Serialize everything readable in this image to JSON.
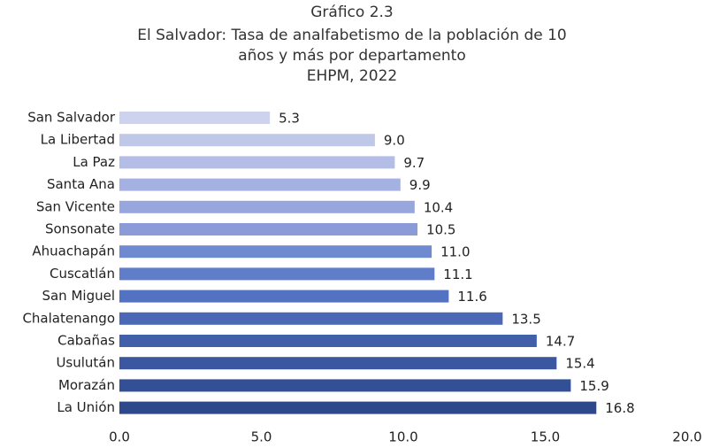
{
  "chart_data": {
    "type": "barh",
    "title": "Gráfico 2.3",
    "subtitle": [
      "El Salvador: Tasa de analfabetismo de la población de 10",
      "años y más por departamento",
      "EHPM, 2022"
    ],
    "categories": [
      "San Salvador",
      "La Libertad",
      "La Paz",
      "Santa Ana",
      "San Vicente",
      "Sonsonate",
      "Ahuachapán",
      "Cuscatlán",
      "San Miguel",
      "Chalatenango",
      "Cabañas",
      "Usulután",
      "Morazán",
      "La Unión"
    ],
    "values": [
      5.3,
      9.0,
      9.7,
      9.9,
      10.4,
      10.5,
      11.0,
      11.1,
      11.6,
      13.5,
      14.7,
      15.4,
      15.9,
      16.8
    ],
    "value_labels": [
      "5.3",
      "9.0",
      "9.7",
      "9.9",
      "10.4",
      "10.5",
      "11.0",
      "11.1",
      "11.6",
      "13.5",
      "14.7",
      "15.4",
      "15.9",
      "16.8"
    ],
    "colors": [
      "#cdd3ef",
      "#c0c8ea",
      "#b3bde6",
      "#a5b2e1",
      "#97a6dc",
      "#8a9bd7",
      "#6f8ad0",
      "#5f7dc9",
      "#5373c2",
      "#4a68b5",
      "#4260aa",
      "#3a57a0",
      "#335096",
      "#2d498b"
    ],
    "xlim": [
      0,
      20
    ],
    "xticks": [
      {
        "value": 0,
        "label": "0.0"
      },
      {
        "value": 5,
        "label": "5.0"
      },
      {
        "value": 10,
        "label": "10.0"
      },
      {
        "value": 15,
        "label": "15.0"
      },
      {
        "value": 20,
        "label": "20.0"
      }
    ]
  }
}
